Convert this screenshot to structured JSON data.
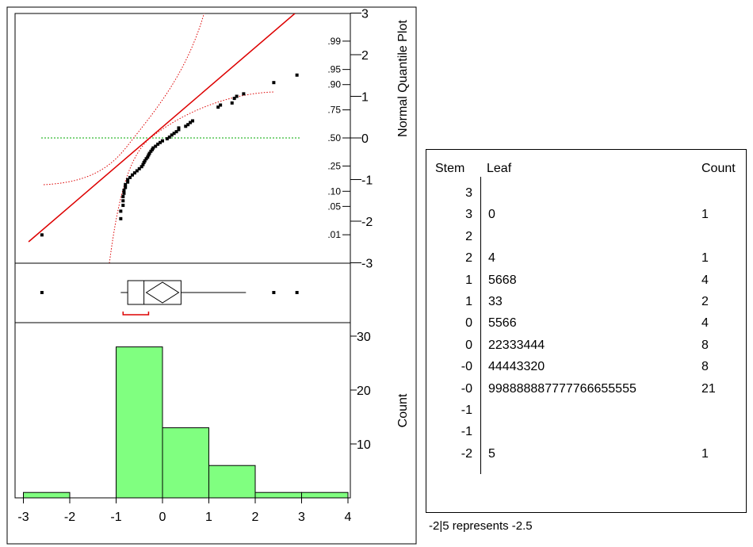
{
  "chart_data": [
    {
      "type": "scatter",
      "subtype": "normal-quantile-plot",
      "axis_label_right": "Normal Quantile Plot",
      "z_ticks": [
        -3,
        -2,
        -1,
        0,
        1,
        2,
        3
      ],
      "prob_ticks": [
        ".01",
        ".05",
        ".10",
        ".25",
        ".50",
        ".75",
        ".90",
        ".95",
        ".99"
      ],
      "prob_values": [
        0.01,
        0.05,
        0.1,
        0.25,
        0.5,
        0.75,
        0.9,
        0.95,
        0.99
      ],
      "xlim": [
        -3.1,
        4.1
      ],
      "zlim": [
        -3,
        3
      ],
      "fit_line": {
        "x": [
          -2.7,
          3.0
        ],
        "z": [
          -2.4,
          3.1
        ]
      },
      "points": {
        "x": [
          -2.6,
          -0.9,
          -0.9,
          -0.85,
          -0.85,
          -0.85,
          -0.83,
          -0.83,
          -0.8,
          -0.8,
          -0.75,
          -0.75,
          -0.7,
          -0.65,
          -0.6,
          -0.55,
          -0.5,
          -0.45,
          -0.42,
          -0.4,
          -0.38,
          -0.35,
          -0.32,
          -0.3,
          -0.28,
          -0.25,
          -0.22,
          -0.2,
          -0.15,
          -0.1,
          -0.05,
          0.0,
          0.1,
          0.15,
          0.2,
          0.25,
          0.3,
          0.35,
          0.35,
          0.5,
          0.55,
          0.6,
          0.65,
          1.2,
          1.25,
          1.5,
          1.55,
          1.6,
          1.75,
          2.4,
          2.9
        ],
        "z": [
          -2.33,
          -1.94,
          -1.76,
          -1.62,
          -1.51,
          -1.41,
          -1.33,
          -1.26,
          -1.19,
          -1.12,
          -1.06,
          -1.0,
          -0.95,
          -0.89,
          -0.84,
          -0.79,
          -0.74,
          -0.69,
          -0.64,
          -0.59,
          -0.55,
          -0.5,
          -0.46,
          -0.41,
          -0.37,
          -0.32,
          -0.28,
          -0.24,
          -0.2,
          -0.15,
          -0.11,
          -0.07,
          -0.02,
          0.02,
          0.07,
          0.11,
          0.15,
          0.2,
          0.24,
          0.28,
          0.32,
          0.37,
          0.41,
          0.74,
          0.79,
          0.84,
          0.95,
          1.0,
          1.06,
          1.33,
          1.51
        ]
      },
      "confidence_band_color": "#dd0000",
      "fit_line_color": "#dd0000",
      "median_line_color": "#00aa00"
    },
    {
      "type": "boxplot",
      "q1": -0.75,
      "median": -0.4,
      "q3": 0.4,
      "mean": 0.0,
      "mean_ci": [
        -0.35,
        0.35
      ],
      "whisker_low": -0.9,
      "whisker_high": 1.8,
      "outliers": [
        -2.6,
        2.4,
        2.9
      ],
      "shortest_half": [
        -0.85,
        -0.3
      ],
      "shortest_half_color": "#dd0000"
    },
    {
      "type": "bar",
      "subtype": "histogram",
      "ylabel": "Count",
      "bins": [
        [
          -3,
          -2
        ],
        [
          -2,
          -1
        ],
        [
          -1,
          0
        ],
        [
          0,
          1
        ],
        [
          1,
          2
        ],
        [
          2,
          3
        ],
        [
          3,
          4
        ]
      ],
      "values": [
        1,
        0,
        28,
        13,
        6,
        1,
        1
      ],
      "x_ticks": [
        -3,
        -2,
        -1,
        0,
        1,
        2,
        3,
        4
      ],
      "y_ticks": [
        10,
        20,
        30
      ],
      "ylim": [
        0,
        32
      ],
      "bar_color": "#80ff80"
    }
  ],
  "stem_leaf": {
    "headers": {
      "stem": "Stem",
      "leaf": "Leaf",
      "count": "Count"
    },
    "rows": [
      {
        "stem": "3",
        "leaf": "",
        "count": ""
      },
      {
        "stem": "3",
        "leaf": "0",
        "count": "1"
      },
      {
        "stem": "2",
        "leaf": "",
        "count": ""
      },
      {
        "stem": "2",
        "leaf": "4",
        "count": "1"
      },
      {
        "stem": "1",
        "leaf": "5668",
        "count": "4"
      },
      {
        "stem": "1",
        "leaf": "33",
        "count": "2"
      },
      {
        "stem": "0",
        "leaf": "5566",
        "count": "4"
      },
      {
        "stem": "0",
        "leaf": "22333444",
        "count": "8"
      },
      {
        "stem": "-0",
        "leaf": "44443320",
        "count": "8"
      },
      {
        "stem": "-0",
        "leaf": "998888887777766655555",
        "count": "21"
      },
      {
        "stem": "-1",
        "leaf": "",
        "count": ""
      },
      {
        "stem": "-1",
        "leaf": "",
        "count": ""
      },
      {
        "stem": "-2",
        "leaf": "5",
        "count": "1"
      }
    ],
    "footnote": "-2|5 represents -2.5"
  }
}
